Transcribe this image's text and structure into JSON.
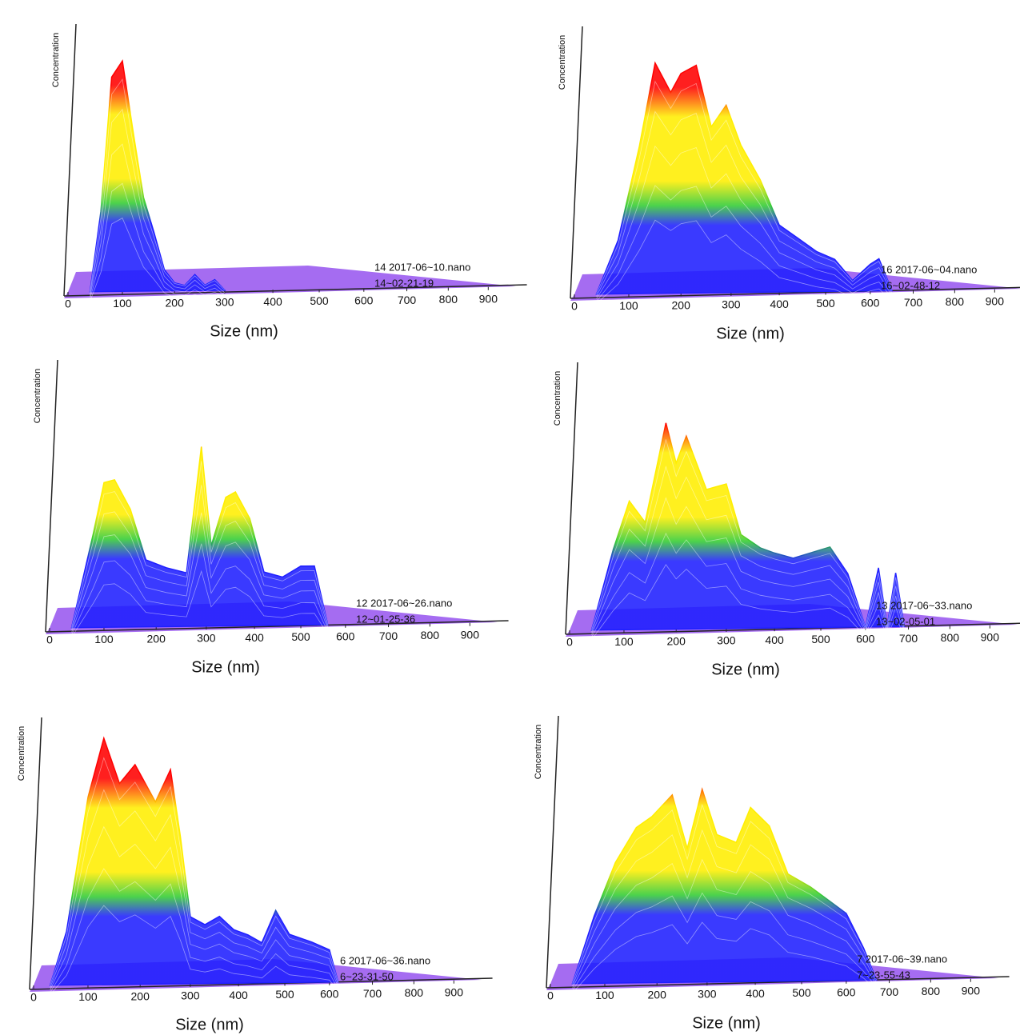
{
  "chart_data": [
    {
      "type": "area",
      "xlabel": "Size (nm)",
      "ylabel": "Concentration",
      "annotations": [
        "14 2017-06~10.nano",
        "14~02-21-19"
      ],
      "x": [
        40,
        60,
        80,
        100,
        120,
        140,
        160,
        180,
        200,
        220,
        240,
        260,
        280,
        300
      ],
      "values": [
        0,
        30,
        80,
        86,
        60,
        35,
        22,
        8,
        3,
        2,
        6,
        2,
        4,
        0
      ],
      "xlim": [
        0,
        1000
      ],
      "ylim": [
        0,
        100
      ],
      "xticks": [
        0,
        100,
        200,
        300,
        400,
        500,
        600,
        700,
        800,
        900
      ],
      "colors": [
        "#1f1fff",
        "#33cc33",
        "#ffee00",
        "#ff0000"
      ],
      "floor_color": "#9b5cf0"
    },
    {
      "type": "area",
      "xlabel": "Size (nm)",
      "ylabel": "Concentration",
      "annotations": [
        "16 2017-06~04.nano",
        "16~02-48-12"
      ],
      "x": [
        40,
        80,
        120,
        150,
        180,
        200,
        230,
        260,
        290,
        320,
        360,
        400,
        440,
        480,
        520,
        560,
        600,
        620,
        650
      ],
      "values": [
        0,
        20,
        55,
        86,
        75,
        82,
        85,
        62,
        70,
        55,
        42,
        25,
        20,
        15,
        12,
        4,
        10,
        12,
        0
      ],
      "xlim": [
        0,
        1000
      ],
      "ylim": [
        0,
        100
      ],
      "xticks": [
        0,
        100,
        200,
        300,
        400,
        500,
        600,
        700,
        800,
        900
      ],
      "colors": [
        "#1f1fff",
        "#33cc33",
        "#ffee00",
        "#ff0000"
      ],
      "floor_color": "#9b5cf0"
    },
    {
      "type": "area",
      "xlabel": "Size (nm)",
      "ylabel": "Concentration",
      "annotations": [
        "12 2017-06~26.nano",
        "12~01-25-36"
      ],
      "x": [
        40,
        80,
        100,
        120,
        150,
        180,
        220,
        260,
        290,
        310,
        340,
        360,
        390,
        420,
        460,
        500,
        530,
        560
      ],
      "values": [
        0,
        35,
        54,
        55,
        44,
        25,
        22,
        20,
        67,
        30,
        48,
        50,
        40,
        20,
        18,
        22,
        22,
        0
      ],
      "xlim": [
        0,
        1000
      ],
      "ylim": [
        0,
        100
      ],
      "xticks": [
        0,
        100,
        200,
        300,
        400,
        500,
        600,
        700,
        800,
        900
      ],
      "colors": [
        "#1f1fff",
        "#33cc33",
        "#ffee00",
        "#ff0000"
      ],
      "floor_color": "#9b5cf0"
    },
    {
      "type": "area",
      "xlabel": "Size (nm)",
      "ylabel": "Concentration",
      "annotations": [
        "13 2017-06~33.nano",
        "13~02-05-01"
      ],
      "x": [
        40,
        80,
        110,
        140,
        180,
        200,
        220,
        260,
        300,
        330,
        370,
        400,
        440,
        480,
        520,
        560,
        600,
        630,
        650,
        670,
        690
      ],
      "values": [
        0,
        30,
        48,
        40,
        77,
        62,
        72,
        52,
        54,
        35,
        30,
        28,
        26,
        28,
        30,
        20,
        0,
        22,
        0,
        20,
        0
      ],
      "xlim": [
        0,
        1000
      ],
      "ylim": [
        0,
        100
      ],
      "xticks": [
        0,
        100,
        200,
        300,
        400,
        500,
        600,
        700,
        800,
        900
      ],
      "colors": [
        "#1f1fff",
        "#33cc33",
        "#ffee00",
        "#ff0000"
      ],
      "floor_color": "#9b5cf0"
    },
    {
      "type": "area",
      "xlabel": "Size (nm)",
      "ylabel": "Concentration",
      "annotations": [
        "6 2017-06~36.nano",
        "6~23-31-50"
      ],
      "x": [
        30,
        60,
        100,
        130,
        160,
        190,
        230,
        260,
        280,
        300,
        330,
        360,
        390,
        420,
        450,
        480,
        510,
        560,
        600,
        620
      ],
      "values": [
        0,
        20,
        70,
        92,
        75,
        82,
        68,
        80,
        55,
        25,
        22,
        25,
        20,
        18,
        15,
        27,
        18,
        15,
        12,
        0
      ],
      "xlim": [
        0,
        1000
      ],
      "ylim": [
        0,
        100
      ],
      "xticks": [
        0,
        100,
        200,
        300,
        400,
        500,
        600,
        700,
        800,
        900
      ],
      "colors": [
        "#1f1fff",
        "#33cc33",
        "#ffee00",
        "#ff0000"
      ],
      "floor_color": "#9b5cf0"
    },
    {
      "type": "area",
      "xlabel": "Size (nm)",
      "ylabel": "Concentration",
      "annotations": [
        "7 2017-06~39.nano",
        "7~23-55-43"
      ],
      "x": [
        40,
        80,
        120,
        160,
        190,
        230,
        260,
        290,
        320,
        360,
        390,
        430,
        470,
        520,
        560,
        600,
        640,
        670
      ],
      "values": [
        0,
        25,
        45,
        58,
        62,
        70,
        50,
        72,
        55,
        52,
        65,
        58,
        40,
        35,
        30,
        25,
        12,
        0
      ],
      "xlim": [
        0,
        1000
      ],
      "ylim": [
        0,
        100
      ],
      "xticks": [
        0,
        100,
        200,
        300,
        400,
        500,
        600,
        700,
        800,
        900
      ],
      "colors": [
        "#1f1fff",
        "#33cc33",
        "#ffee00",
        "#ff0000"
      ],
      "floor_color": "#9b5cf0"
    }
  ]
}
